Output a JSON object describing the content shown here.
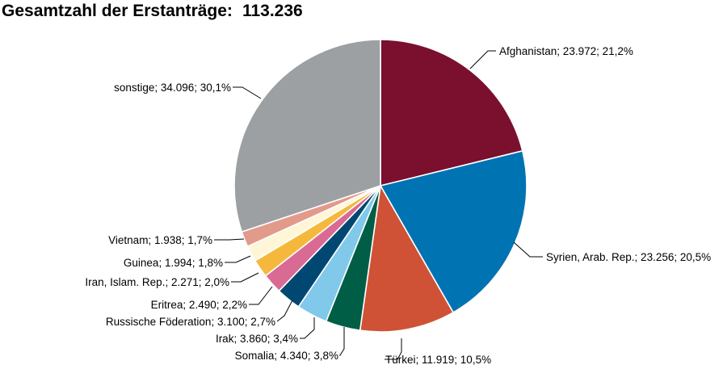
{
  "chart_data": {
    "type": "pie",
    "title": "Gesamtzahl der Erstanträge:",
    "total": "113.236",
    "start_angle_deg": 0,
    "direction": "clockwise",
    "slices": [
      {
        "name": "Afghanistan",
        "value": 23972,
        "percent": 21.2,
        "label": "Afghanistan; 23.972; 21,2%",
        "color": "#7a0f2e"
      },
      {
        "name": "Syrien, Arab. Rep.",
        "value": 23256,
        "percent": 20.5,
        "label": "Syrien, Arab. Rep.; 23.256; 20,5%",
        "color": "#0073b3"
      },
      {
        "name": "Türkei",
        "value": 11919,
        "percent": 10.5,
        "label": "Türkei; 11.919; 10,5%",
        "color": "#cf5236"
      },
      {
        "name": "Somalia",
        "value": 4340,
        "percent": 3.8,
        "label": "Somalia; 4.340; 3,8%",
        "color": "#005e46"
      },
      {
        "name": "Irak",
        "value": 3860,
        "percent": 3.4,
        "label": "Irak; 3.860; 3,4%",
        "color": "#80c9ea"
      },
      {
        "name": "Russische Föderation",
        "value": 3100,
        "percent": 2.7,
        "label": "Russische Föderation; 3.100; 2,7%",
        "color": "#004872"
      },
      {
        "name": "Eritrea",
        "value": 2490,
        "percent": 2.2,
        "label": "Eritrea; 2.490; 2,2%",
        "color": "#d96a93"
      },
      {
        "name": "Iran, Islam. Rep.",
        "value": 2271,
        "percent": 2.0,
        "label": "Iran, Islam. Rep.; 2.271; 2,0%",
        "color": "#f4b93c"
      },
      {
        "name": "Guinea",
        "value": 1994,
        "percent": 1.8,
        "label": "Guinea; 1.994; 1,8%",
        "color": "#fef6d6"
      },
      {
        "name": "Vietnam",
        "value": 1938,
        "percent": 1.7,
        "label": "Vietnam; 1.938; 1,7%",
        "color": "#e29a8a"
      },
      {
        "name": "sonstige",
        "value": 34096,
        "percent": 30.1,
        "label": "sonstige; 34.096; 30,1%",
        "color": "#9ca0a3"
      }
    ]
  }
}
